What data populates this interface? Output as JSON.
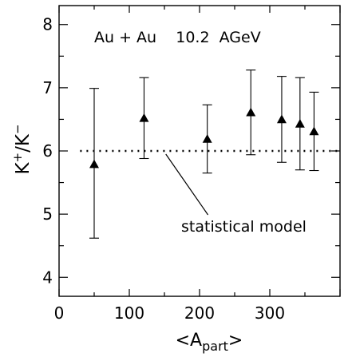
{
  "chart_data": {
    "type": "scatter",
    "title": "Au + Au    10.2  AGeV",
    "xlabel": {
      "pre": "<A",
      "sub": "part",
      "post": ">"
    },
    "ylabel": {
      "a": "K",
      "a_sup": "+",
      "sep": "/K",
      "b_sup": "−"
    },
    "xlim": [
      0,
      400
    ],
    "ylim": [
      3.7,
      8.3
    ],
    "x_ticks": [
      0,
      100,
      200,
      300
    ],
    "y_ticks": [
      4,
      5,
      6,
      7,
      8
    ],
    "grid": false,
    "x": [
      50,
      121,
      211,
      273,
      317,
      343,
      363
    ],
    "y": [
      5.79,
      6.52,
      6.19,
      6.61,
      6.5,
      6.43,
      6.31
    ],
    "err_low": [
      1.17,
      0.64,
      0.54,
      0.67,
      0.68,
      0.73,
      0.62
    ],
    "err_high": [
      1.2,
      0.64,
      0.54,
      0.67,
      0.68,
      0.73,
      0.62
    ],
    "reference_line": {
      "y": 6.0,
      "x_from": 30,
      "x_to": 400,
      "style": "dotted"
    },
    "annotation": {
      "text": "statistical model"
    },
    "marker_color": "#000000"
  }
}
